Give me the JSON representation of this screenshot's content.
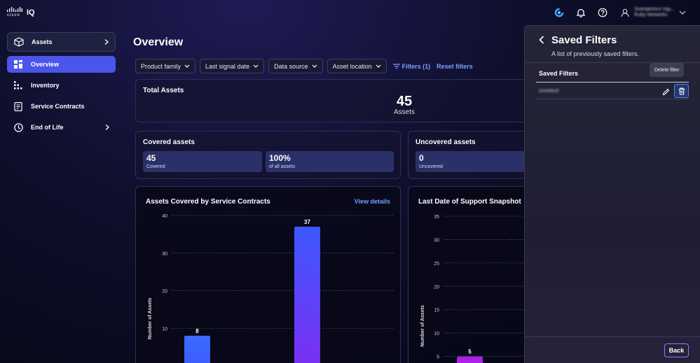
{
  "app": {
    "logo_text": "cisco",
    "product": "IQ"
  },
  "header": {
    "user_name": "Sreelakshmi Vija...",
    "user_org": "Ruby Networks"
  },
  "sidebar": {
    "items": [
      {
        "label": "Assets",
        "icon": "box-icon"
      },
      {
        "label": "Overview",
        "icon": "grid-icon"
      },
      {
        "label": "Inventory",
        "icon": "inventory-icon"
      },
      {
        "label": "Service Contracts",
        "icon": "contract-icon"
      },
      {
        "label": "End of Life",
        "icon": "clock-icon"
      }
    ]
  },
  "main": {
    "title": "Overview",
    "filters": [
      "Product family",
      "Last signal date",
      "Data source",
      "Asset location"
    ],
    "filters_link": "Filters (1)",
    "reset_link": "Reset filters",
    "total": {
      "title": "Total Assets",
      "value": "45",
      "label": "Assets"
    },
    "covered": {
      "title": "Covered assets",
      "stats": [
        {
          "value": "45",
          "label": "Covered"
        },
        {
          "value": "100%",
          "label": "of all assets"
        }
      ]
    },
    "uncovered": {
      "title": "Uncovered assets",
      "stats": [
        {
          "value": "0",
          "label": "Uncovered"
        }
      ]
    },
    "chart1_view": "View details"
  },
  "chart_data": [
    {
      "type": "bar",
      "title": "Assets Covered by Service Contracts",
      "ylabel": "Number of Assets",
      "ylim": [
        0,
        40
      ],
      "yticks": [
        10,
        20,
        30,
        40
      ],
      "values": [
        8,
        37
      ],
      "colors": [
        "#3d5afe",
        "#7c2ef0"
      ]
    },
    {
      "type": "bar",
      "title": "Last Date of Support Snapshot",
      "ylabel": "Number of Assets",
      "ylim": [
        0,
        35
      ],
      "yticks": [
        5,
        10,
        15,
        20,
        25,
        30,
        35
      ],
      "values": [
        5
      ],
      "colors": [
        "#c026d3"
      ]
    }
  ],
  "panel": {
    "title": "Saved Filters",
    "subtitle": "A list of previously saved filters.",
    "column_header": "Saved Filters",
    "rows": [
      {
        "name": "sreetest"
      }
    ],
    "tooltip": "Delete filter",
    "back_button": "Back"
  }
}
